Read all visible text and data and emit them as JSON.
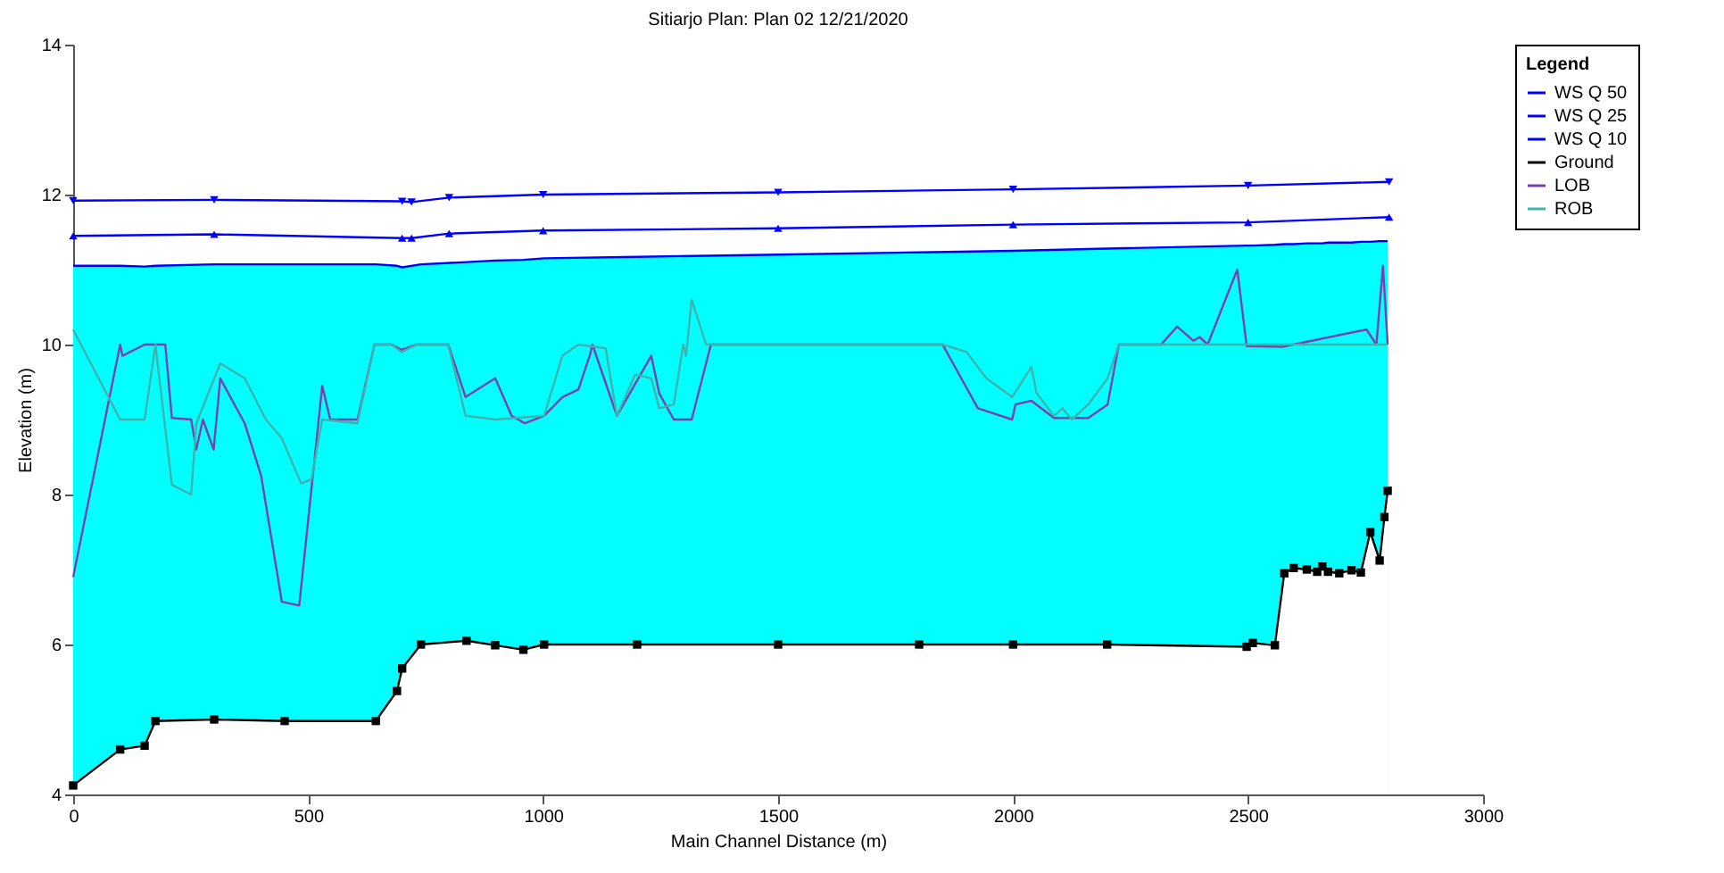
{
  "chart_data": {
    "type": "line",
    "title": "Sitiarjo     Plan: Plan 02     12/21/2020",
    "xlabel": "Main Channel Distance (m)",
    "ylabel": "Elevation (m)",
    "legend_title": "Legend",
    "legend": "top right",
    "grid": false,
    "xlim": [
      0,
      3000
    ],
    "xticks": [
      0,
      500,
      1000,
      1500,
      2000,
      2500,
      3000
    ],
    "ylim": [
      4,
      14
    ],
    "yticks": [
      4,
      6,
      8,
      10,
      12,
      14
    ],
    "series": [
      {
        "name": "WS Q 50",
        "color": "#0000ff",
        "marker": "triangle-down",
        "x": [
          0,
          300,
          700,
          720,
          800,
          1000,
          1500,
          2000,
          2500,
          2800
        ],
        "values": [
          11.92,
          11.93,
          11.91,
          11.9,
          11.96,
          12.0,
          12.03,
          12.07,
          12.12,
          12.17
        ]
      },
      {
        "name": "WS Q 25",
        "color": "#0000ff",
        "marker": "triangle",
        "x": [
          0,
          300,
          700,
          720,
          800,
          1000,
          1500,
          2000,
          2500,
          2800
        ],
        "values": [
          11.45,
          11.47,
          11.42,
          11.42,
          11.48,
          11.52,
          11.55,
          11.6,
          11.63,
          11.7
        ]
      },
      {
        "name": "WS Q 10",
        "type": "area",
        "color": "#0000ff",
        "x": [
          0,
          100,
          152,
          175,
          300,
          450,
          644,
          689,
          700,
          740,
          837,
          898,
          958,
          1002,
          1200,
          1500,
          1800,
          2000,
          2200,
          2497,
          2510,
          2557,
          2577,
          2597,
          2625,
          2647,
          2658,
          2670,
          2694,
          2720,
          2740,
          2760,
          2780,
          2790,
          2797
        ],
        "values": [
          11.05,
          11.05,
          11.04,
          11.05,
          11.07,
          11.07,
          11.07,
          11.05,
          11.03,
          11.07,
          11.1,
          11.12,
          11.13,
          11.15,
          11.17,
          11.2,
          11.23,
          11.25,
          11.28,
          11.32,
          11.32,
          11.33,
          11.34,
          11.34,
          11.35,
          11.35,
          11.35,
          11.36,
          11.36,
          11.36,
          11.37,
          11.37,
          11.38,
          11.38,
          11.38
        ]
      },
      {
        "name": "Ground",
        "type": "area",
        "color": "#000000",
        "marker": "square",
        "x": [
          0,
          100,
          152,
          175,
          300,
          450,
          644,
          689,
          700,
          740,
          837,
          898,
          958,
          1002,
          1200,
          1500,
          1800,
          2000,
          2200,
          2497,
          2510,
          2557,
          2577,
          2597,
          2625,
          2647,
          2658,
          2670,
          2694,
          2720,
          2740,
          2760,
          2780,
          2790,
          2797
        ],
        "values": [
          4.12,
          4.6,
          4.65,
          4.98,
          5.0,
          4.98,
          4.98,
          5.38,
          5.68,
          6.0,
          6.05,
          5.99,
          5.93,
          6.0,
          6.0,
          6.0,
          6.0,
          6.0,
          6.0,
          5.97,
          6.02,
          5.99,
          6.95,
          7.02,
          7.0,
          6.97,
          7.04,
          6.97,
          6.95,
          6.99,
          6.96,
          7.5,
          7.12,
          7.7,
          8.05
        ]
      },
      {
        "name": "LOB",
        "color": "#7b3fb0",
        "x": [
          0,
          100,
          105,
          152,
          196,
          210,
          251,
          262,
          276,
          299,
          313,
          365,
          400,
          444,
          481,
          530,
          547,
          605,
          641,
          677,
          699,
          731,
          798,
          835,
          898,
          933,
          961,
          1002,
          1041,
          1075,
          1099,
          1105,
          1157,
          1230,
          1247,
          1278,
          1316,
          1357,
          1850,
          1925,
          1998,
          2005,
          2039,
          2087,
          2160,
          2201,
          2225,
          2315,
          2349,
          2384,
          2397,
          2414,
          2477,
          2497,
          2573,
          2752,
          2773,
          2787,
          2797
        ],
        "values": [
          6.9,
          10.0,
          9.85,
          10.0,
          10.0,
          9.02,
          9.0,
          8.6,
          9.0,
          8.6,
          9.55,
          8.95,
          8.25,
          6.57,
          6.52,
          9.45,
          9.0,
          9.0,
          10.0,
          10.0,
          9.93,
          10.0,
          10.0,
          9.3,
          9.55,
          9.05,
          8.95,
          9.05,
          9.3,
          9.4,
          9.85,
          10.0,
          9.05,
          9.85,
          9.35,
          9.0,
          9.0,
          10.0,
          10.0,
          9.15,
          9.0,
          9.2,
          9.25,
          9.02,
          9.02,
          9.2,
          10.0,
          10.0,
          10.24,
          10.05,
          10.1,
          10.0,
          11.0,
          9.98,
          9.97,
          10.2,
          10.0,
          11.05,
          10.0
        ]
      },
      {
        "name": "ROB",
        "color": "#3fb3ad",
        "x": [
          0,
          100,
          152,
          175,
          210,
          251,
          262,
          313,
          365,
          410,
          444,
          485,
          507,
          530,
          605,
          641,
          677,
          699,
          731,
          798,
          835,
          898,
          1002,
          1041,
          1075,
          1133,
          1157,
          1196,
          1230,
          1247,
          1278,
          1298,
          1304,
          1316,
          1347,
          1850,
          1901,
          1943,
          1998,
          2039,
          2050,
          2087,
          2105,
          2125,
          2160,
          2201,
          2225,
          2787,
          2797
        ],
        "values": [
          10.2,
          9.0,
          9.0,
          10.0,
          8.13,
          8.0,
          8.95,
          9.75,
          9.55,
          9.0,
          8.75,
          8.15,
          8.2,
          9.0,
          8.95,
          10.0,
          10.0,
          9.9,
          10.0,
          10.0,
          9.05,
          9.0,
          9.05,
          9.85,
          10.0,
          9.95,
          9.05,
          9.6,
          9.55,
          9.15,
          9.2,
          10.0,
          9.85,
          10.6,
          10.0,
          10.0,
          9.9,
          9.55,
          9.3,
          9.7,
          9.35,
          9.05,
          9.15,
          9.0,
          9.2,
          9.55,
          10.0,
          10.0,
          10.0
        ]
      }
    ]
  }
}
